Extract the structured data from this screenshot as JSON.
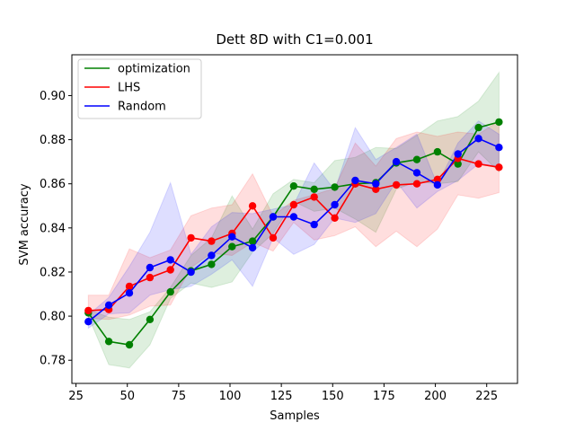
{
  "chart_data": {
    "type": "line",
    "title": "Dett 8D with C1=0.001",
    "xlabel": "Samples",
    "ylabel": "SVM accuracy",
    "xlim": [
      23,
      240
    ],
    "ylim": [
      0.7695,
      0.9185
    ],
    "xticks": [
      25,
      50,
      75,
      100,
      125,
      150,
      175,
      200,
      225
    ],
    "yticks": [
      0.78,
      0.8,
      0.82,
      0.84,
      0.86,
      0.88,
      0.9
    ],
    "x": [
      31,
      41,
      51,
      61,
      71,
      81,
      91,
      101,
      111,
      121,
      131,
      141,
      151,
      161,
      171,
      181,
      191,
      201,
      211,
      221,
      231
    ],
    "legend_position": "upper left",
    "grid": false,
    "series": [
      {
        "name": "optimization",
        "color": "#008000",
        "values": [
          0.8015,
          0.7885,
          0.787,
          0.7985,
          0.811,
          0.8205,
          0.8235,
          0.8315,
          0.834,
          0.845,
          0.859,
          0.8575,
          0.8585,
          0.86,
          0.8605,
          0.8695,
          0.871,
          0.8745,
          0.869,
          0.8855,
          0.888
        ],
        "lower": [
          0.8,
          0.778,
          0.7765,
          0.787,
          0.808,
          0.815,
          0.813,
          0.8155,
          0.829,
          0.8375,
          0.852,
          0.8475,
          0.849,
          0.844,
          0.838,
          0.8575,
          0.861,
          0.86,
          0.861,
          0.8745,
          0.8655
        ],
        "upper": [
          0.803,
          0.7995,
          0.7985,
          0.802,
          0.813,
          0.8275,
          0.8355,
          0.8545,
          0.8395,
          0.8555,
          0.862,
          0.8605,
          0.8705,
          0.872,
          0.8765,
          0.876,
          0.882,
          0.8885,
          0.8905,
          0.8975,
          0.9105
        ]
      },
      {
        "name": "LHS",
        "color": "#ff0000",
        "values": [
          0.8025,
          0.803,
          0.8135,
          0.8175,
          0.821,
          0.8355,
          0.834,
          0.8375,
          0.85,
          0.8355,
          0.8505,
          0.854,
          0.8445,
          0.86,
          0.8575,
          0.8595,
          0.86,
          0.862,
          0.8715,
          0.869,
          0.8675
        ],
        "lower": [
          0.799,
          0.7985,
          0.8005,
          0.8045,
          0.805,
          0.822,
          0.8285,
          0.8275,
          0.8335,
          0.8295,
          0.8425,
          0.8345,
          0.8365,
          0.8405,
          0.8315,
          0.8385,
          0.8315,
          0.8395,
          0.855,
          0.8535,
          0.856
        ],
        "upper": [
          0.8095,
          0.8095,
          0.8305,
          0.8265,
          0.83,
          0.8455,
          0.849,
          0.8505,
          0.8645,
          0.8455,
          0.8525,
          0.855,
          0.858,
          0.8785,
          0.868,
          0.8805,
          0.8835,
          0.8815,
          0.8835,
          0.8825,
          0.8885
        ]
      },
      {
        "name": "Random",
        "color": "#0000ff",
        "values": [
          0.7975,
          0.805,
          0.8105,
          0.822,
          0.8255,
          0.82,
          0.8275,
          0.836,
          0.831,
          0.845,
          0.845,
          0.8415,
          0.8505,
          0.8615,
          0.86,
          0.87,
          0.865,
          0.8595,
          0.8735,
          0.8805,
          0.8765
        ],
        "lower": [
          0.7945,
          0.801,
          0.8015,
          0.8095,
          0.812,
          0.8135,
          0.819,
          0.8255,
          0.8135,
          0.8355,
          0.828,
          0.8325,
          0.8445,
          0.8425,
          0.8465,
          0.861,
          0.849,
          0.8565,
          0.8615,
          0.869,
          0.868
        ],
        "upper": [
          0.8005,
          0.8085,
          0.8225,
          0.838,
          0.8605,
          0.828,
          0.8405,
          0.847,
          0.8465,
          0.8485,
          0.8505,
          0.8695,
          0.857,
          0.8855,
          0.871,
          0.8765,
          0.8825,
          0.8595,
          0.8785,
          0.8885,
          0.8825
        ]
      }
    ]
  }
}
